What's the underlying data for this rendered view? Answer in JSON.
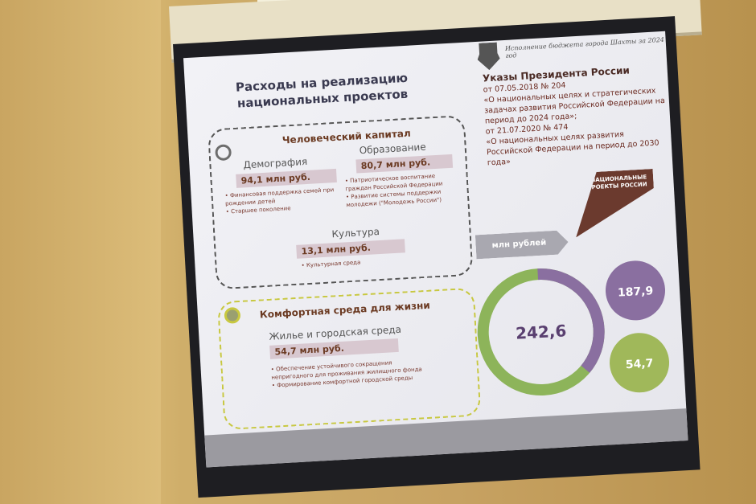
{
  "slide": {
    "title": "Расходы на реализацию национальных проектов",
    "header": "Исполнение бюджета города Шахты за 2024 год",
    "decrees": {
      "heading": "Указы Президента России",
      "lines": [
        "от 07.05.2018 № 204",
        "«О национальных целях и стратегических задачах развития Российской Федерации на период до 2024 года»;",
        "от 21.07.2020 № 474",
        "«О национальных целях развития Российской Федерации на период до 2030 года»"
      ]
    },
    "human_capital": {
      "heading": "Человеческий капитал",
      "demography": {
        "label": "Демография",
        "value": "94,1 млн руб.",
        "items": [
          "Финансовая поддержка семей при рождении детей",
          "Старшее поколение"
        ]
      },
      "education": {
        "label": "Образование",
        "value": "80,7 млн руб.",
        "items": [
          "Патриотическое воспитание граждан Российской Федерации",
          "Развитие системы поддержки молодежи (\"Молодежь России\")"
        ]
      },
      "culture": {
        "label": "Культура",
        "value": "13,1 млн руб.",
        "items": [
          "Культурная среда"
        ]
      }
    },
    "comfort": {
      "heading": "Комфортная среда для жизни",
      "housing": {
        "label": "Жилье и городская среда",
        "value": "54,7 млн руб.",
        "items": [
          "Обеспечение устойчивого сокращения непригодного для проживания жилищного фонда",
          "Формирование комфортной городской среды"
        ]
      }
    },
    "unit_label": "млн рублей",
    "badge": "НАЦИОНАЛЬНЫЕ ПРОЕКТЫ РОССИИ",
    "chart": {
      "total": "242,6",
      "a": "187,9",
      "b": "54,7"
    },
    "colors": {
      "purple": "#8a6fa0",
      "green": "#8db45a",
      "brown": "#6b3a2e"
    }
  }
}
